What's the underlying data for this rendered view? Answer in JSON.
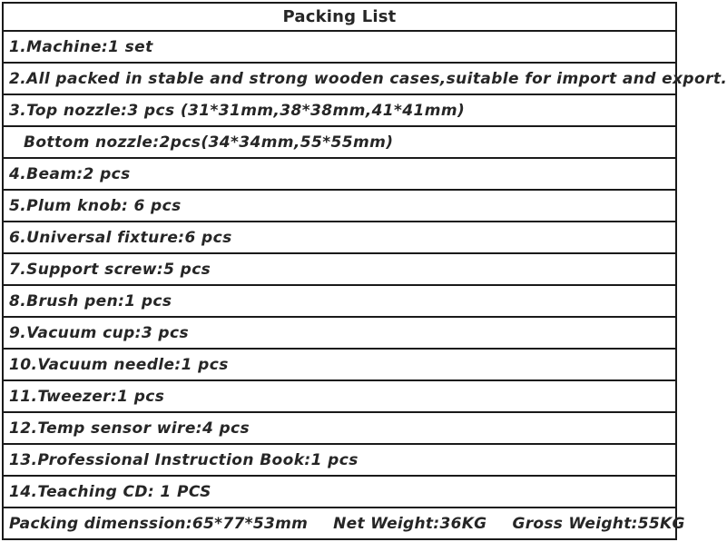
{
  "header": {
    "title": "Packing List"
  },
  "rows": [
    {
      "text": "1.Machine:1 set"
    },
    {
      "text": "2.All packed in stable and strong wooden cases,suitable for import and export."
    },
    {
      "text": "3.Top nozzle:3 pcs (31*31mm,38*38mm,41*41mm)"
    },
    {
      "text": "Bottom nozzle:2pcs(34*34mm,55*55mm)"
    },
    {
      "text": "4.Beam:2 pcs"
    },
    {
      "text": "5.Plum knob: 6 pcs"
    },
    {
      "text": "6.Universal fixture:6 pcs"
    },
    {
      "text": "7.Support screw:5 pcs"
    },
    {
      "text": "8.Brush pen:1 pcs"
    },
    {
      "text": "9.Vacuum cup:3 pcs"
    },
    {
      "text": "10.Vacuum needle:1 pcs"
    },
    {
      "text": "11.Tweezer:1 pcs"
    },
    {
      "text": "12.Temp sensor wire:4 pcs"
    },
    {
      "text": "13.Professional Instruction Book:1 pcs"
    },
    {
      "text": "14.Teaching CD: 1 PCS"
    }
  ],
  "footer": {
    "segments": [
      "Packing dimenssion:65*77*53mm",
      "Net Weight:36KG",
      "Gross Weight:55KG"
    ]
  },
  "colors": {
    "border": "#1a1a1a",
    "text": "#262626",
    "background": "#ffffff"
  }
}
